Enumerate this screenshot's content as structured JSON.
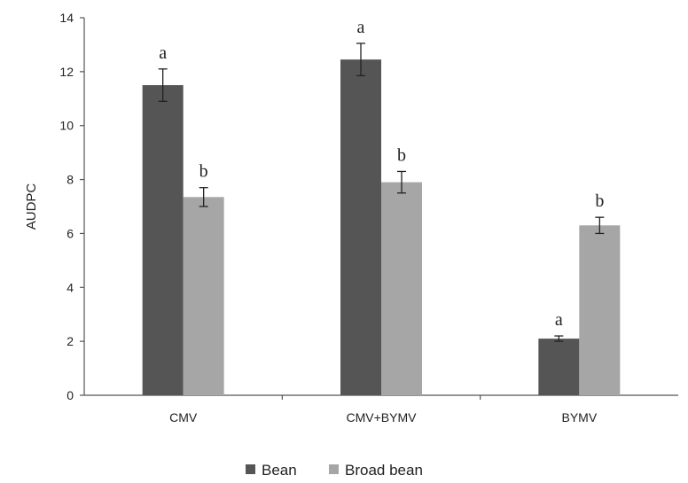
{
  "chart_data": {
    "type": "bar",
    "ylabel": "AUDPC",
    "xlabel": "",
    "title": "",
    "ylim": [
      0,
      14
    ],
    "ytick_step": 2,
    "categories": [
      "CMV",
      "CMV+BYMV",
      "BYMV"
    ],
    "series": [
      {
        "name": "Bean",
        "color": "#555555",
        "values": [
          11.5,
          12.45,
          2.1
        ],
        "errors": [
          0.6,
          0.6,
          0.1
        ],
        "letters": [
          "a",
          "a",
          "a"
        ]
      },
      {
        "name": "Broad bean",
        "color": "#a6a6a6",
        "values": [
          7.35,
          7.9,
          6.3
        ],
        "errors": [
          0.35,
          0.4,
          0.3
        ],
        "letters": [
          "b",
          "b",
          "b"
        ]
      }
    ],
    "grid": false,
    "error_bars": true,
    "legend_position": "bottom-center"
  }
}
